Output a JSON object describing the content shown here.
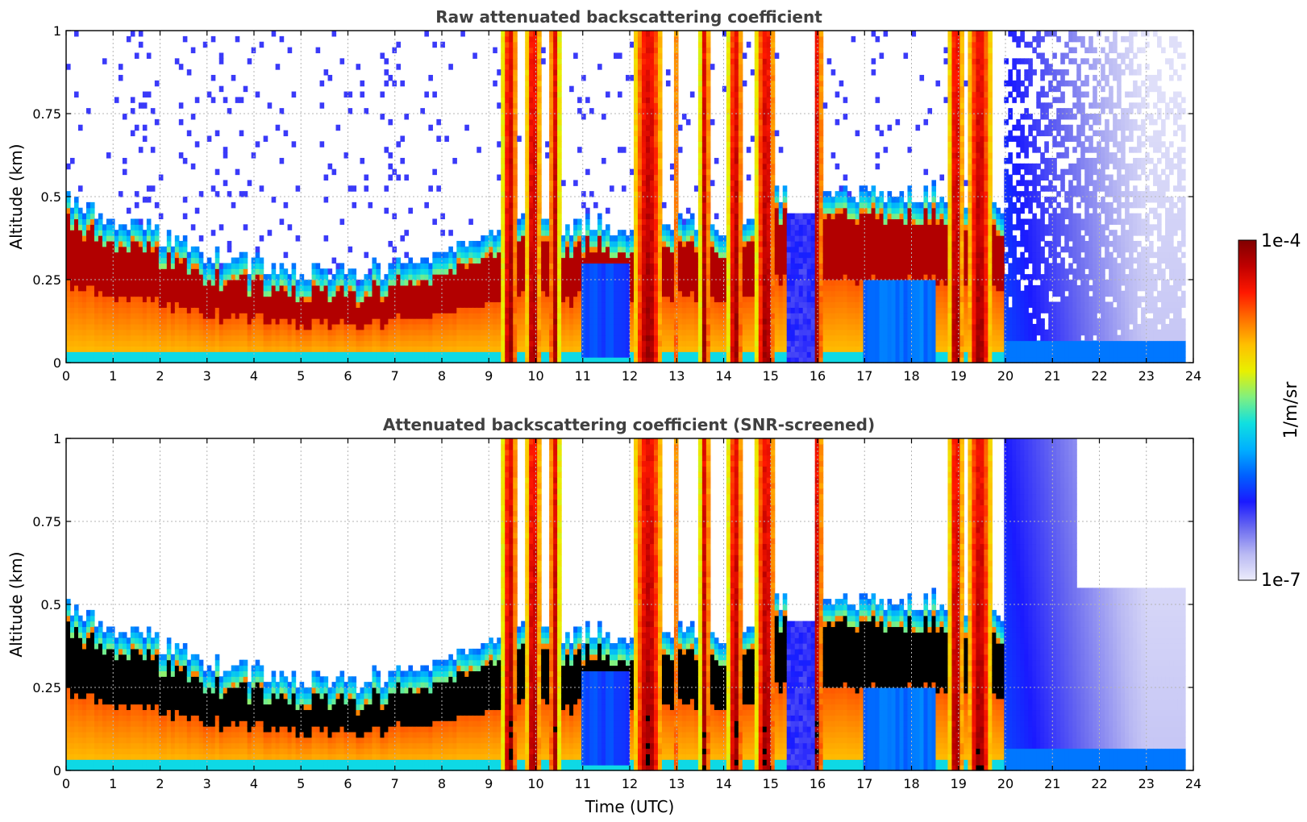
{
  "colorbar": {
    "label": "1/m/sr",
    "max_label": "1e-4",
    "min_label": "1e-7",
    "min": 1e-07,
    "max": 0.0001,
    "scale": "log",
    "colormap": [
      "#ececfb",
      "#b9b9f3",
      "#6b6bf0",
      "#1a1aff",
      "#0060ff",
      "#00b0ff",
      "#10e0e0",
      "#80f080",
      "#e8f000",
      "#ffc000",
      "#ff7000",
      "#ff1800",
      "#c00000",
      "#800000"
    ]
  },
  "chart_data": [
    {
      "type": "heatmap",
      "title": "Raw attenuated backscattering coefficient",
      "xlabel": "",
      "ylabel": "Altitude (km)",
      "xlim": [
        0,
        24
      ],
      "ylim": [
        0,
        1
      ],
      "xticks": [
        "0",
        "1",
        "2",
        "3",
        "4",
        "5",
        "6",
        "7",
        "8",
        "9",
        "10",
        "11",
        "12",
        "13",
        "14",
        "15",
        "16",
        "17",
        "18",
        "19",
        "20",
        "21",
        "22",
        "23",
        "24"
      ],
      "yticks": [
        "0",
        "0.25",
        "0.5",
        "0.75",
        "1"
      ],
      "grid": true,
      "colorscale": "log",
      "variant": "raw"
    },
    {
      "type": "heatmap",
      "title": "Attenuated backscattering coefficient (SNR-screened)",
      "xlabel": "Time (UTC)",
      "ylabel": "Altitude (km)",
      "xlim": [
        0,
        24
      ],
      "ylim": [
        0,
        1
      ],
      "xticks": [
        "0",
        "1",
        "2",
        "3",
        "4",
        "5",
        "6",
        "7",
        "8",
        "9",
        "10",
        "11",
        "12",
        "13",
        "14",
        "15",
        "16",
        "17",
        "18",
        "19",
        "20",
        "21",
        "22",
        "23",
        "24"
      ],
      "yticks": [
        "0",
        "0.25",
        "0.5",
        "0.75",
        "1"
      ],
      "grid": true,
      "colorscale": "log",
      "variant": "screened"
    }
  ]
}
